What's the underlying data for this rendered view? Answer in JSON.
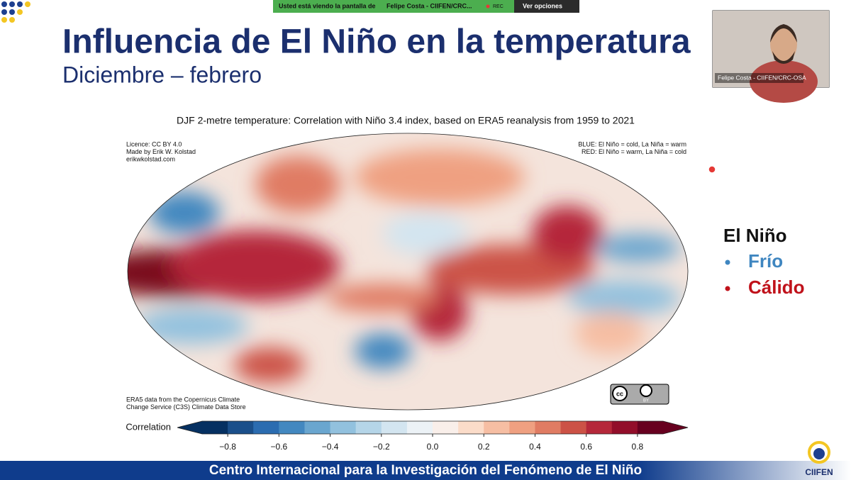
{
  "screen_share": {
    "banner": "Usted está viendo la pantalla de",
    "presenter": "Felipe Costa - CIIFEN/CRC...",
    "rec": "REC",
    "options": "Ver opciones"
  },
  "slide": {
    "title": "Influencia de El Niño en la temperatura",
    "subtitle": "Diciembre – febrero",
    "figure": {
      "title": "DJF 2-metre temperature: Correlation with Niño 3.4 index, based on ERA5 reanalysis from 1959 to 2021",
      "licence": [
        "Licence: CC BY 4.0",
        "Made by Erik W. Kolstad",
        "erikwkolstad.com"
      ],
      "key": [
        "BLUE: El Niño = cold, La Niña = warm",
        "RED: El Niño = warm, La Niña = cold"
      ],
      "source": [
        "ERA5 data from the Copernicus Climate",
        "Change Service (C3S) Climate Data Store"
      ],
      "badge": [
        "cc",
        "BY"
      ],
      "colorbar": {
        "label": "Correlation",
        "lim": [
          -0.9,
          0.9
        ],
        "ticks": [
          {
            "value": -0.8,
            "label": "−0.8"
          },
          {
            "value": -0.6,
            "label": "−0.6"
          },
          {
            "value": -0.4,
            "label": "−0.4"
          },
          {
            "value": -0.2,
            "label": "−0.2"
          },
          {
            "value": 0,
            "label": "0.0"
          },
          0.2,
          0.4,
          0.6,
          0.8
        ],
        "colors": [
          "#053061",
          "#1a4f8a",
          "#2b6cb0",
          "#4388c0",
          "#6aa6cf",
          "#92c1de",
          "#b5d5e8",
          "#d3e5f0",
          "#ecf2f6",
          "#f9efea",
          "#fbdcc9",
          "#f6bea3",
          "#efa081",
          "#e07c63",
          "#cc5246",
          "#b5283a",
          "#920e2a",
          "#67001f"
        ]
      }
    },
    "legend": {
      "title": "El Niño",
      "items": [
        {
          "text": "Frío",
          "color": "#3f86c0"
        },
        {
          "text": "Cálido",
          "color": "#c0121b"
        }
      ]
    },
    "footer": "Centro Internacional para la Investigación del Fenómeno de El Niño",
    "logo": "CIIFEN"
  },
  "webcam": {
    "name": "Felipe Costa - CIIFEN/CRC-OSA"
  }
}
